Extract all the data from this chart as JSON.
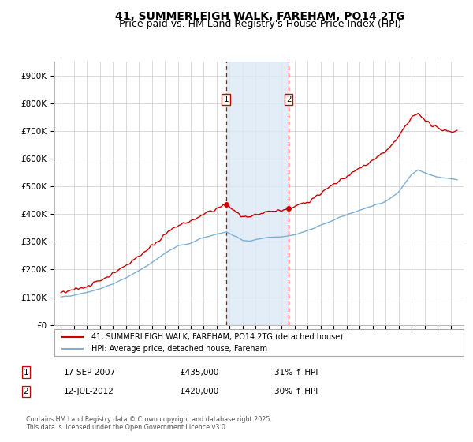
{
  "title": "41, SUMMERLEIGH WALK, FAREHAM, PO14 2TG",
  "subtitle": "Price paid vs. HM Land Registry's House Price Index (HPI)",
  "ylim": [
    0,
    950000
  ],
  "yticks": [
    0,
    100000,
    200000,
    300000,
    400000,
    500000,
    600000,
    700000,
    800000,
    900000
  ],
  "yticklabels": [
    "£0",
    "£100K",
    "£200K",
    "£300K",
    "£400K",
    "£500K",
    "£600K",
    "£700K",
    "£800K",
    "£900K"
  ],
  "hpi_color": "#7bafd4",
  "price_color": "#cc0000",
  "background_color": "#ffffff",
  "grid_color": "#cccccc",
  "sale1_date": 2007.71,
  "sale1_price": 435000,
  "sale1_label": "1",
  "sale2_date": 2012.53,
  "sale2_price": 420000,
  "sale2_label": "2",
  "shade_color": "#dce9f5",
  "legend_label_price": "41, SUMMERLEIGH WALK, FAREHAM, PO14 2TG (detached house)",
  "legend_label_hpi": "HPI: Average price, detached house, Fareham",
  "table_row1": [
    "1",
    "17-SEP-2007",
    "£435,000",
    "31% ↑ HPI"
  ],
  "table_row2": [
    "2",
    "12-JUL-2012",
    "£420,000",
    "30% ↑ HPI"
  ],
  "footer": "Contains HM Land Registry data © Crown copyright and database right 2025.\nThis data is licensed under the Open Government Licence v3.0.",
  "title_fontsize": 10,
  "subtitle_fontsize": 9,
  "xmin": 1994.5,
  "xmax": 2026.0
}
